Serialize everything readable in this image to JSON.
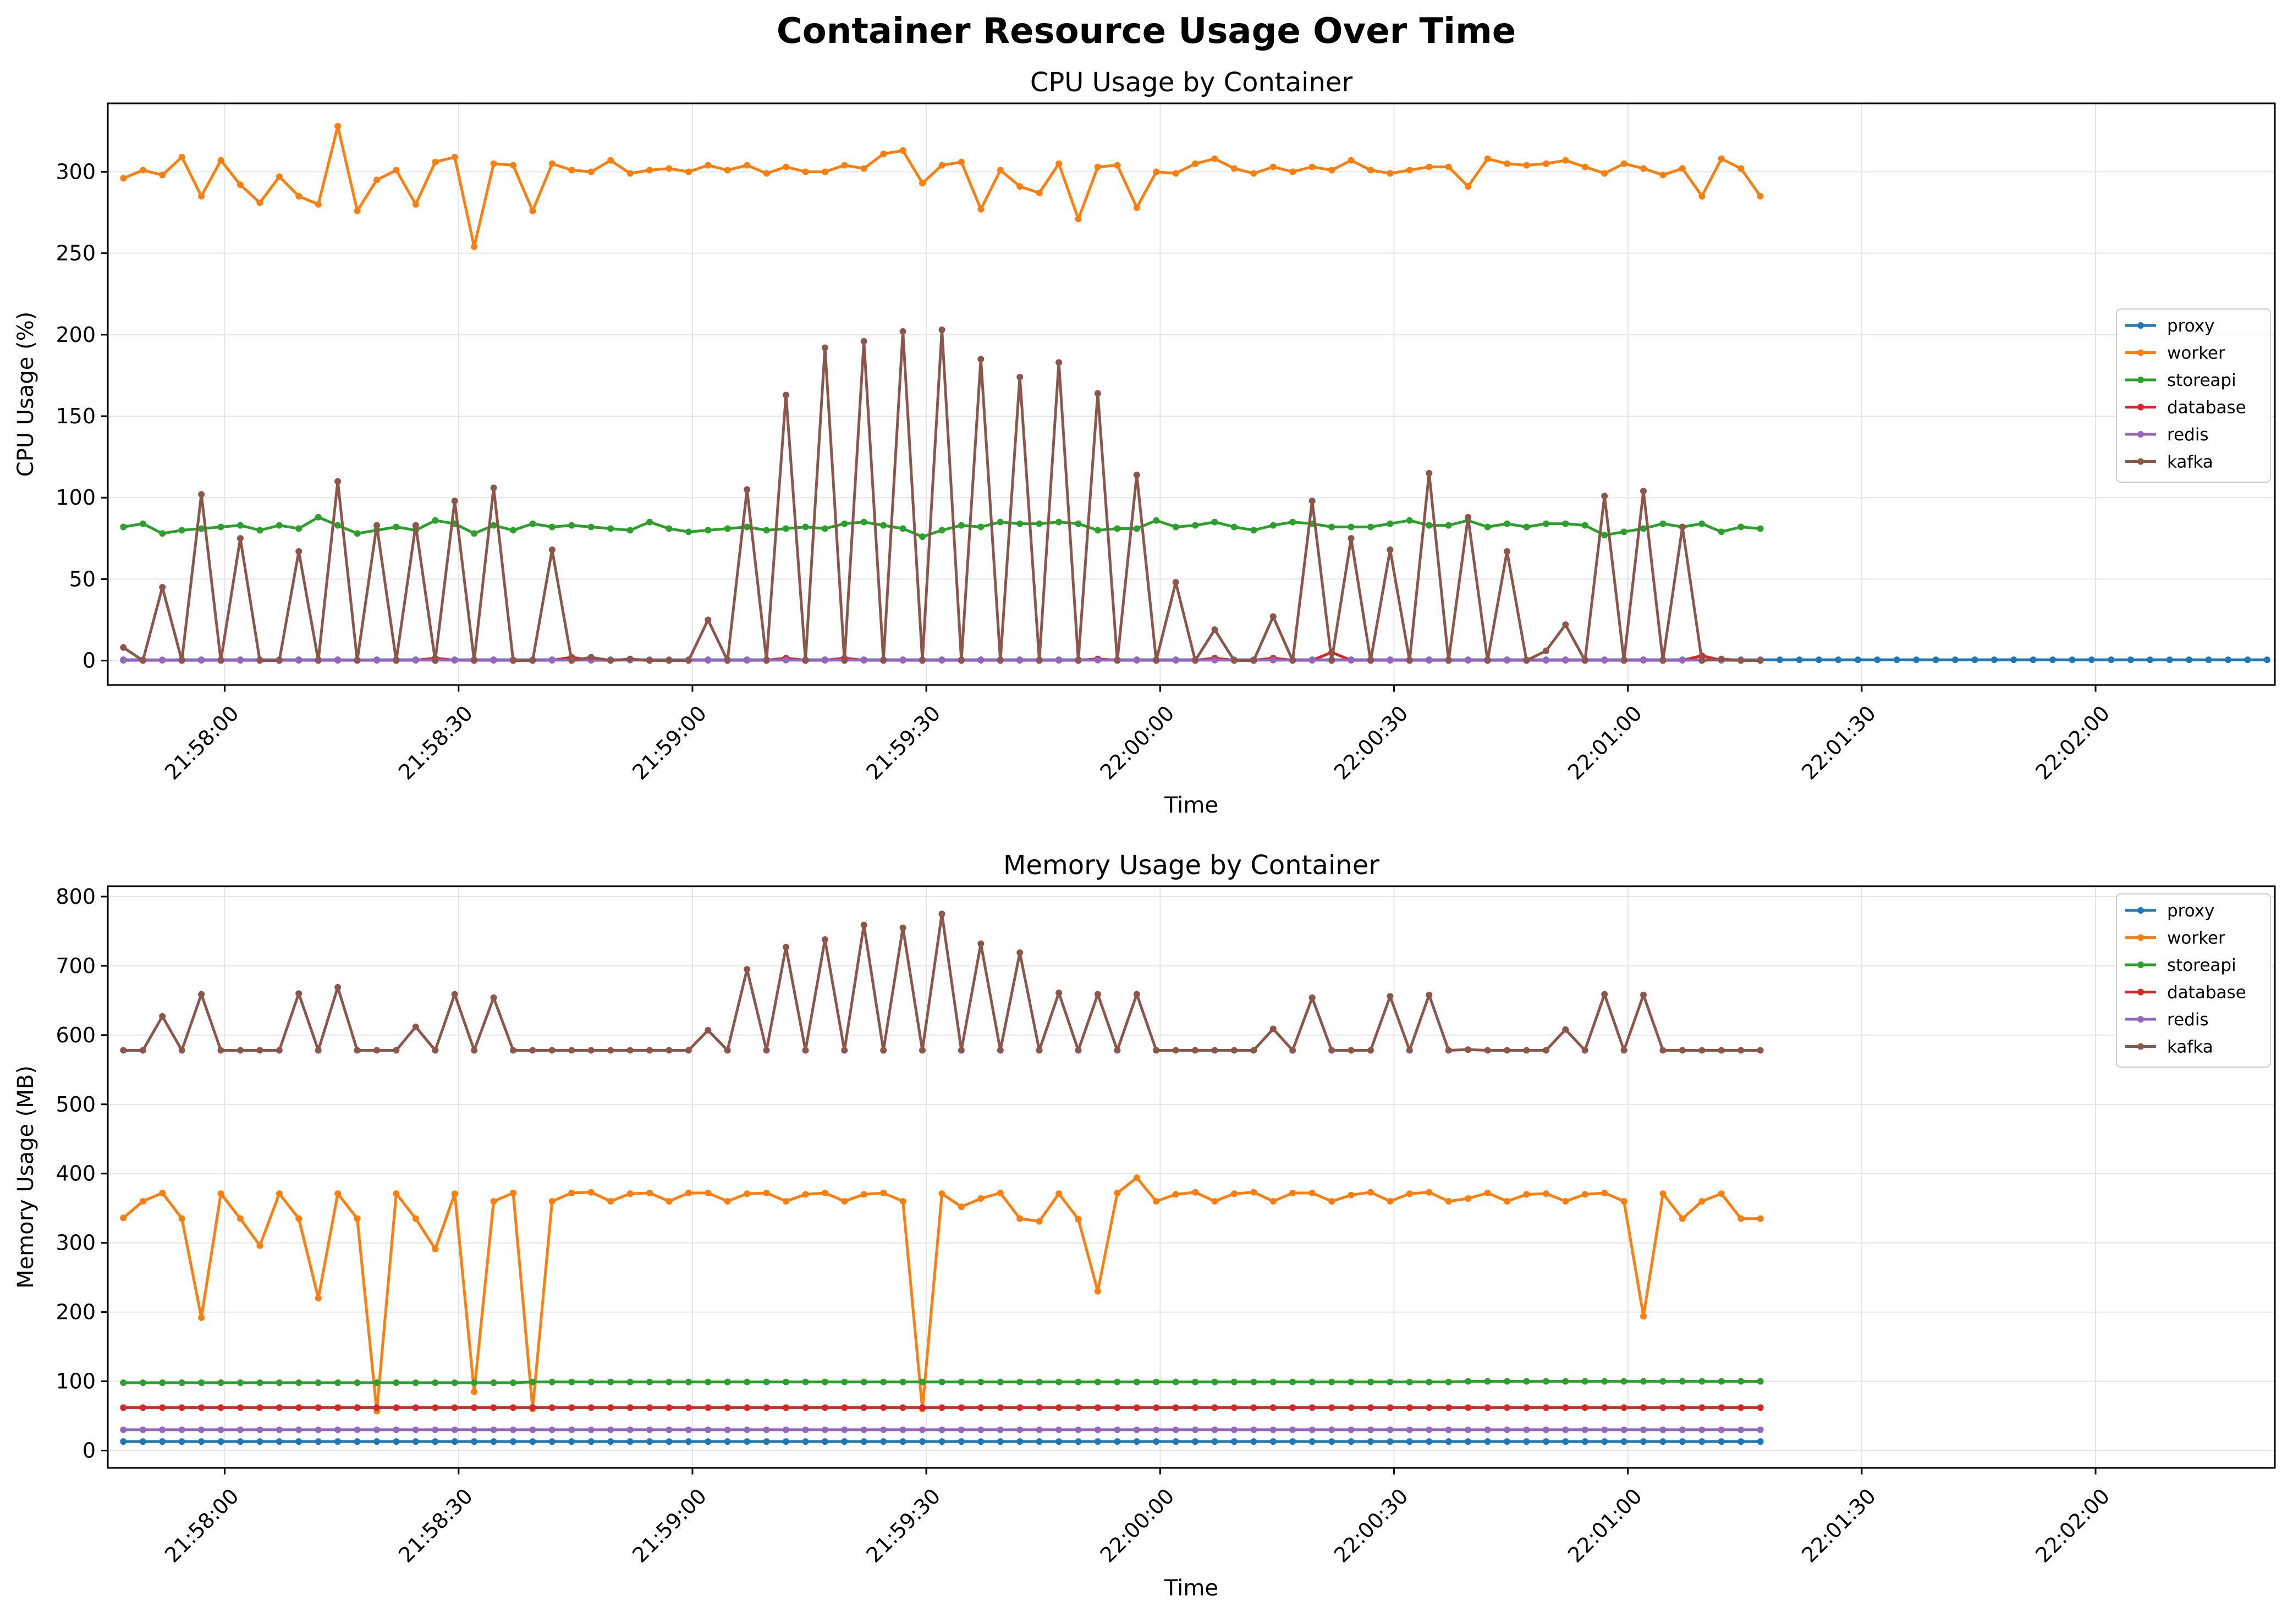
{
  "figure": {
    "title": "Container Resource Usage Over Time"
  },
  "colors": {
    "proxy": "#1f77b4",
    "worker": "#ff7f0e",
    "storeapi": "#2ca02c",
    "database": "#d62728",
    "redis": "#9467bd",
    "kafka": "#8c564b",
    "grid": "#e5e5e5"
  },
  "chart_data": [
    {
      "type": "line",
      "title": "CPU Usage by Container",
      "xlabel": "Time",
      "ylabel": "CPU Usage (%)",
      "x_start": "21:57:47",
      "x_step_seconds": 2.5,
      "xlim": [
        "21:57:45",
        "22:02:23"
      ],
      "ylim": [
        -15,
        342
      ],
      "x_ticks": [
        "21:58:00",
        "21:58:30",
        "21:59:00",
        "21:59:30",
        "22:00:00",
        "22:00:30",
        "22:01:00",
        "22:01:30",
        "22:02:00"
      ],
      "y_ticks": [
        0,
        50,
        100,
        150,
        200,
        250,
        300
      ],
      "grid": true,
      "legend_position": "center-right",
      "series": [
        {
          "name": "proxy",
          "values": [
            0.5,
            0.5,
            0.4,
            0.5,
            0.5,
            0.5,
            0.5,
            0.5,
            0.5,
            0.5,
            0.5,
            0.5,
            0.4,
            0.5,
            0.5,
            0.5,
            0.5,
            0.5,
            0.5,
            0.5,
            0.5,
            0.5,
            0.5,
            0.5,
            0.5,
            0.5,
            0.5,
            0.5,
            0.5,
            0.5,
            0.5,
            0.5,
            0.5,
            0.5,
            0.5,
            0.5,
            0.5,
            0.5,
            0.5,
            0.5,
            0.5,
            0.5,
            0.5,
            0.5,
            0.5,
            0.5,
            0.5,
            0.5,
            0.5,
            0.5,
            0.5,
            0.5,
            0.5,
            0.5,
            0.5,
            0.5,
            0.5,
            0.5,
            0.5,
            0.5,
            0.5,
            0.5,
            0.5,
            0.5,
            0.5,
            0.5,
            0.5,
            0.5,
            0.5,
            0.5,
            0.5,
            0.5,
            0.5,
            0.5,
            0.5,
            0.5,
            0.5,
            0.5,
            0.5,
            0.5,
            0.5,
            0.5,
            0.5,
            0.5,
            0.5,
            0.5,
            0.5,
            0.5,
            0.5,
            0.5,
            0.5,
            0.5,
            0.5,
            0.5,
            0.5,
            0.5,
            0.5,
            0.5,
            0.5,
            0.5,
            0.5,
            0.5,
            0.5,
            0.5,
            0.5,
            0.5,
            0.5,
            0.5,
            0.5,
            0.5,
            0.5
          ]
        },
        {
          "name": "worker",
          "values": [
            296,
            301,
            298,
            309,
            285,
            307,
            292,
            281,
            297,
            285,
            280,
            328,
            276,
            295,
            301,
            280,
            306,
            309,
            254,
            305,
            304,
            276,
            305,
            301,
            300,
            307,
            299,
            301,
            302,
            300,
            304,
            301,
            304,
            299,
            303,
            300,
            300,
            304,
            302,
            311,
            313,
            293,
            304,
            306,
            277,
            301,
            291,
            287,
            305,
            271,
            303,
            304,
            278,
            300,
            299,
            305,
            308,
            302,
            299,
            303,
            300,
            303,
            301,
            307,
            301,
            299,
            301,
            303,
            303,
            291,
            308,
            305,
            304,
            305,
            307,
            303,
            299,
            305,
            302,
            298,
            302,
            285,
            308,
            302,
            285
          ]
        },
        {
          "name": "storeapi",
          "values": [
            82,
            84,
            78,
            80,
            81,
            82,
            83,
            80,
            83,
            81,
            88,
            83,
            78,
            80,
            82,
            80,
            86,
            84,
            78,
            83,
            80,
            84,
            82,
            83,
            82,
            81,
            80,
            85,
            81,
            79,
            80,
            81,
            82,
            80,
            81,
            82,
            81,
            84,
            85,
            83,
            81,
            76,
            80,
            83,
            82,
            85,
            84,
            84,
            85,
            84,
            80,
            81,
            81,
            86,
            82,
            83,
            85,
            82,
            80,
            83,
            85,
            84,
            82,
            82,
            82,
            84,
            86,
            83,
            83,
            86,
            82,
            84,
            82,
            84,
            84,
            83,
            77,
            79,
            81,
            84,
            82,
            84,
            79,
            82,
            81
          ]
        },
        {
          "name": "database",
          "values": [
            0.2,
            0.2,
            0.2,
            0.2,
            0.2,
            0.2,
            0.2,
            0.2,
            0.2,
            0.2,
            0.2,
            0.2,
            0.2,
            0.2,
            0.2,
            0.2,
            1.5,
            0.2,
            0.2,
            0.2,
            0.2,
            0.2,
            0.2,
            2.0,
            0.2,
            0.2,
            0.5,
            0.2,
            0.2,
            0.2,
            0.2,
            0.2,
            0.2,
            0.2,
            1.5,
            0.2,
            0.2,
            1.5,
            0.2,
            0.2,
            0.2,
            0.2,
            0.2,
            0.2,
            0.2,
            0.2,
            0.2,
            0.2,
            0.2,
            0.2,
            1.0,
            0.2,
            0.2,
            0.2,
            0.2,
            0.2,
            1.5,
            0.2,
            0.2,
            1.5,
            0.2,
            0.2,
            5.0,
            0.2,
            0.2,
            0.2,
            0.2,
            0.2,
            0.2,
            0.2,
            0.2,
            0.2,
            0.2,
            0.2,
            0.2,
            0.2,
            0.2,
            0.2,
            0.2,
            0.2,
            0.2,
            3.0,
            0.2,
            0.2,
            0.2
          ]
        },
        {
          "name": "redis",
          "values": [
            0.3,
            0.3,
            0.3,
            0.3,
            0.3,
            0.3,
            0.3,
            0.3,
            0.3,
            0.3,
            0.3,
            0.3,
            0.3,
            0.3,
            0.3,
            0.3,
            0.3,
            0.3,
            0.3,
            0.3,
            0.3,
            0.3,
            0.3,
            0.3,
            0.3,
            0.3,
            0.3,
            0.3,
            0.3,
            0.3,
            0.3,
            0.3,
            0.3,
            0.3,
            0.3,
            0.3,
            0.3,
            0.3,
            0.3,
            0.3,
            0.3,
            0.3,
            0.3,
            0.3,
            0.3,
            0.3,
            0.3,
            0.3,
            0.3,
            0.3,
            0.3,
            0.3,
            0.3,
            0.3,
            0.3,
            0.3,
            0.3,
            0.3,
            0.3,
            0.3,
            0.3,
            0.3,
            0.3,
            0.3,
            0.3,
            0.3,
            0.3,
            0.3,
            0.3,
            0.3,
            0.3,
            0.3,
            0.3,
            0.3,
            0.3,
            0.3,
            0.3,
            0.3,
            0.3,
            0.3,
            0.3,
            0.3,
            0.3,
            0.3,
            0.3
          ]
        },
        {
          "name": "kafka",
          "values": [
            8,
            0,
            45,
            0,
            102,
            0,
            75,
            0,
            0,
            67,
            0,
            110,
            0,
            83,
            0,
            83,
            0,
            98,
            0,
            106,
            0,
            0,
            68,
            0,
            2,
            0,
            1,
            0,
            0,
            0,
            25,
            0,
            105,
            0,
            163,
            0,
            192,
            0,
            196,
            0,
            202,
            0,
            203,
            0,
            185,
            0,
            174,
            0,
            183,
            0,
            164,
            0,
            114,
            0,
            48,
            0,
            19,
            0,
            0,
            27,
            0,
            98,
            0,
            75,
            0,
            68,
            0,
            115,
            0,
            88,
            0,
            67,
            0,
            6,
            22,
            0,
            101,
            0,
            104,
            0,
            82,
            0,
            1,
            0,
            0
          ]
        }
      ]
    },
    {
      "type": "line",
      "title": "Memory Usage by Container",
      "xlabel": "Time",
      "ylabel": "Memory Usage (MB)",
      "x_start": "21:57:47",
      "x_step_seconds": 2.5,
      "xlim": [
        "21:57:45",
        "22:02:23"
      ],
      "ylim": [
        -25,
        815
      ],
      "x_ticks": [
        "21:58:00",
        "21:58:30",
        "21:59:00",
        "21:59:30",
        "22:00:00",
        "22:00:30",
        "22:01:00",
        "22:01:30",
        "22:02:00"
      ],
      "y_ticks": [
        0,
        100,
        200,
        300,
        400,
        500,
        600,
        700,
        800
      ],
      "grid": true,
      "legend_position": "upper-right",
      "series": [
        {
          "name": "proxy",
          "values": [
            13,
            13,
            13,
            13,
            13,
            13,
            13,
            13,
            13,
            13,
            13,
            13,
            13,
            13,
            13,
            13,
            13,
            13,
            13,
            13,
            13,
            13,
            13,
            13,
            13,
            13,
            13,
            13,
            13,
            13,
            13,
            13,
            13,
            13,
            13,
            13,
            13,
            13,
            13,
            13,
            13,
            13,
            13,
            13,
            13,
            13,
            13,
            13,
            13,
            13,
            13,
            13,
            13,
            13,
            13,
            13,
            13,
            13,
            13,
            13,
            13,
            13,
            13,
            13,
            13,
            13,
            13,
            13,
            13,
            13,
            13,
            13,
            13,
            13,
            13,
            13,
            13,
            13,
            13,
            13,
            13,
            13,
            13,
            13,
            13
          ]
        },
        {
          "name": "worker",
          "values": [
            336,
            360,
            372,
            335,
            192,
            371,
            335,
            296,
            371,
            335,
            220,
            371,
            335,
            57,
            371,
            335,
            291,
            371,
            85,
            360,
            372,
            60,
            360,
            372,
            373,
            360,
            371,
            372,
            360,
            372,
            372,
            360,
            371,
            372,
            360,
            370,
            372,
            360,
            370,
            372,
            360,
            60,
            371,
            352,
            364,
            372,
            335,
            331,
            371,
            334,
            230,
            372,
            394,
            360,
            370,
            373,
            360,
            371,
            373,
            360,
            372,
            372,
            360,
            369,
            373,
            360,
            371,
            373,
            360,
            364,
            372,
            360,
            370,
            371,
            360,
            370,
            372,
            360,
            194,
            371,
            335,
            360,
            371,
            335,
            335
          ]
        },
        {
          "name": "storeapi",
          "values": [
            98,
            98,
            98,
            98,
            98,
            98,
            98,
            98,
            98,
            98,
            98,
            98,
            98,
            98,
            98,
            98,
            98,
            98,
            98,
            98,
            98,
            99,
            99,
            99,
            99,
            99,
            99,
            99,
            99,
            99,
            99,
            99,
            99,
            99,
            99,
            99,
            99,
            99,
            99,
            99,
            99,
            99,
            99,
            99,
            99,
            99,
            99,
            99,
            99,
            99,
            99,
            99,
            99,
            99,
            99,
            99,
            99,
            99,
            99,
            99,
            99,
            99,
            99,
            99,
            99,
            99,
            99,
            99,
            99,
            100,
            100,
            100,
            100,
            100,
            100,
            100,
            100,
            100,
            100,
            100,
            100,
            100,
            100,
            100,
            100
          ]
        },
        {
          "name": "database",
          "values": [
            62,
            62,
            62,
            62,
            62,
            62,
            62,
            62,
            62,
            62,
            62,
            62,
            62,
            62,
            62,
            62,
            62,
            62,
            62,
            62,
            62,
            62,
            62,
            62,
            62,
            62,
            62,
            62,
            62,
            62,
            62,
            62,
            62,
            62,
            62,
            62,
            62,
            62,
            62,
            62,
            62,
            62,
            62,
            62,
            62,
            62,
            62,
            62,
            62,
            62,
            62,
            62,
            62,
            62,
            62,
            62,
            62,
            62,
            62,
            62,
            62,
            62,
            62,
            62,
            62,
            62,
            62,
            62,
            62,
            62,
            62,
            62,
            62,
            62,
            62,
            62,
            62,
            62,
            62,
            62,
            62,
            62,
            62,
            62,
            62
          ]
        },
        {
          "name": "redis",
          "values": [
            30,
            30,
            30,
            30,
            30,
            30,
            30,
            30,
            30,
            30,
            30,
            30,
            30,
            30,
            30,
            30,
            30,
            30,
            30,
            30,
            30,
            30,
            30,
            30,
            30,
            30,
            30,
            30,
            30,
            30,
            30,
            30,
            30,
            30,
            30,
            30,
            30,
            30,
            30,
            30,
            30,
            30,
            30,
            30,
            30,
            30,
            30,
            30,
            30,
            30,
            30,
            30,
            30,
            30,
            30,
            30,
            30,
            30,
            30,
            30,
            30,
            30,
            30,
            30,
            30,
            30,
            30,
            30,
            30,
            30,
            30,
            30,
            30,
            30,
            30,
            30,
            30,
            30,
            30,
            30,
            30,
            30,
            30,
            30,
            30
          ]
        },
        {
          "name": "kafka",
          "values": [
            578,
            578,
            627,
            578,
            659,
            578,
            578,
            578,
            578,
            660,
            578,
            669,
            578,
            578,
            578,
            612,
            578,
            659,
            578,
            654,
            578,
            578,
            578,
            578,
            578,
            578,
            578,
            578,
            578,
            578,
            607,
            578,
            695,
            578,
            727,
            578,
            738,
            578,
            759,
            578,
            755,
            578,
            775,
            578,
            732,
            578,
            719,
            578,
            661,
            578,
            659,
            578,
            659,
            578,
            578,
            578,
            578,
            578,
            578,
            609,
            578,
            654,
            578,
            578,
            578,
            656,
            578,
            658,
            578,
            579,
            578,
            578,
            578,
            578,
            608,
            578,
            659,
            578,
            658,
            578,
            578,
            578,
            578,
            578,
            578
          ]
        }
      ]
    }
  ]
}
